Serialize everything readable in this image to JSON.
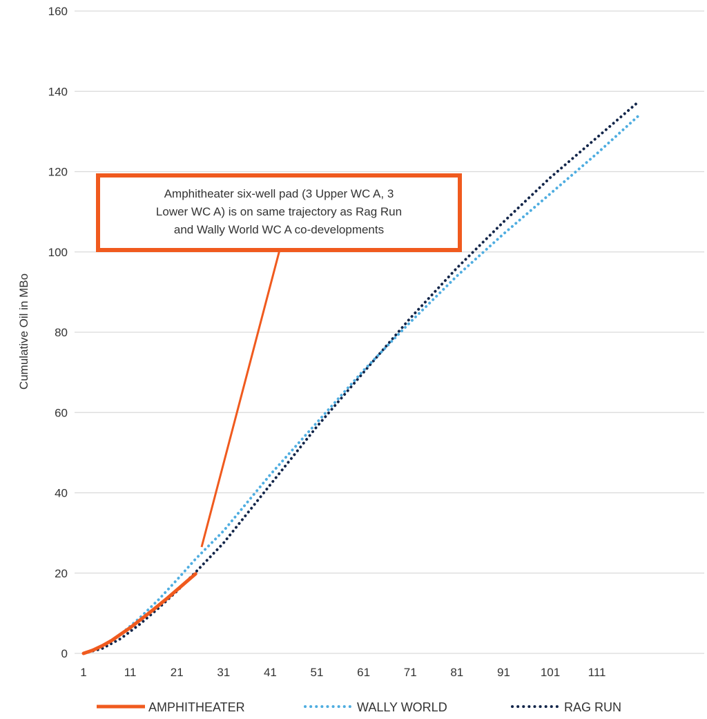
{
  "chart_data": {
    "type": "line",
    "ylabel": "Cumulative Oil in MBo",
    "xlabel": "",
    "xlim": [
      1,
      120
    ],
    "ylim": [
      0,
      160
    ],
    "x_ticks": [
      "1",
      "11",
      "21",
      "31",
      "41",
      "51",
      "61",
      "71",
      "81",
      "91",
      "101",
      "111"
    ],
    "y_ticks": [
      "0",
      "20",
      "40",
      "60",
      "80",
      "100",
      "120",
      "140",
      "160"
    ],
    "grid": "horizontal",
    "legend_position": "bottom",
    "series": [
      {
        "name": "AMPHITHEATER",
        "color": "#F05A1E",
        "style": "solid",
        "x": [
          1,
          3,
          5,
          7,
          9,
          11,
          13,
          15,
          17,
          19,
          21,
          23,
          25
        ],
        "y": [
          0,
          0.8,
          1.9,
          3.2,
          4.8,
          6.4,
          8.2,
          10.0,
          11.9,
          13.8,
          15.8,
          17.8,
          19.8
        ]
      },
      {
        "name": "WALLY WORLD",
        "color": "#4FADE0",
        "style": "dotted",
        "x": [
          1,
          5,
          9,
          13,
          17,
          21,
          25,
          31,
          41,
          51,
          61,
          71,
          81,
          91,
          101,
          111,
          120
        ],
        "y": [
          0,
          1.8,
          4.8,
          8.8,
          13.3,
          18.3,
          23.5,
          30.5,
          44.5,
          57.5,
          70.5,
          82.5,
          94.0,
          104.5,
          114.5,
          124.5,
          134.0
        ]
      },
      {
        "name": "RAG RUN",
        "color": "#13264A",
        "style": "dotted",
        "x": [
          1,
          5,
          9,
          13,
          17,
          21,
          25,
          31,
          41,
          51,
          61,
          71,
          81,
          91,
          101,
          111,
          120
        ],
        "y": [
          0,
          1.2,
          3.7,
          7.2,
          11.2,
          15.5,
          20.2,
          27.5,
          42.0,
          56.5,
          70.0,
          83.5,
          96.0,
          107.5,
          118.5,
          128.5,
          137.5
        ]
      }
    ],
    "annotation": {
      "text_lines": [
        "Amphitheater six-well pad (3 Upper WC A, 3",
        "Lower WC A) is on same trajectory as Rag Run",
        "and Wally World WC A co-developments"
      ],
      "border_color": "#F05A1E",
      "points_to": {
        "x": 24,
        "y": 27
      }
    }
  }
}
